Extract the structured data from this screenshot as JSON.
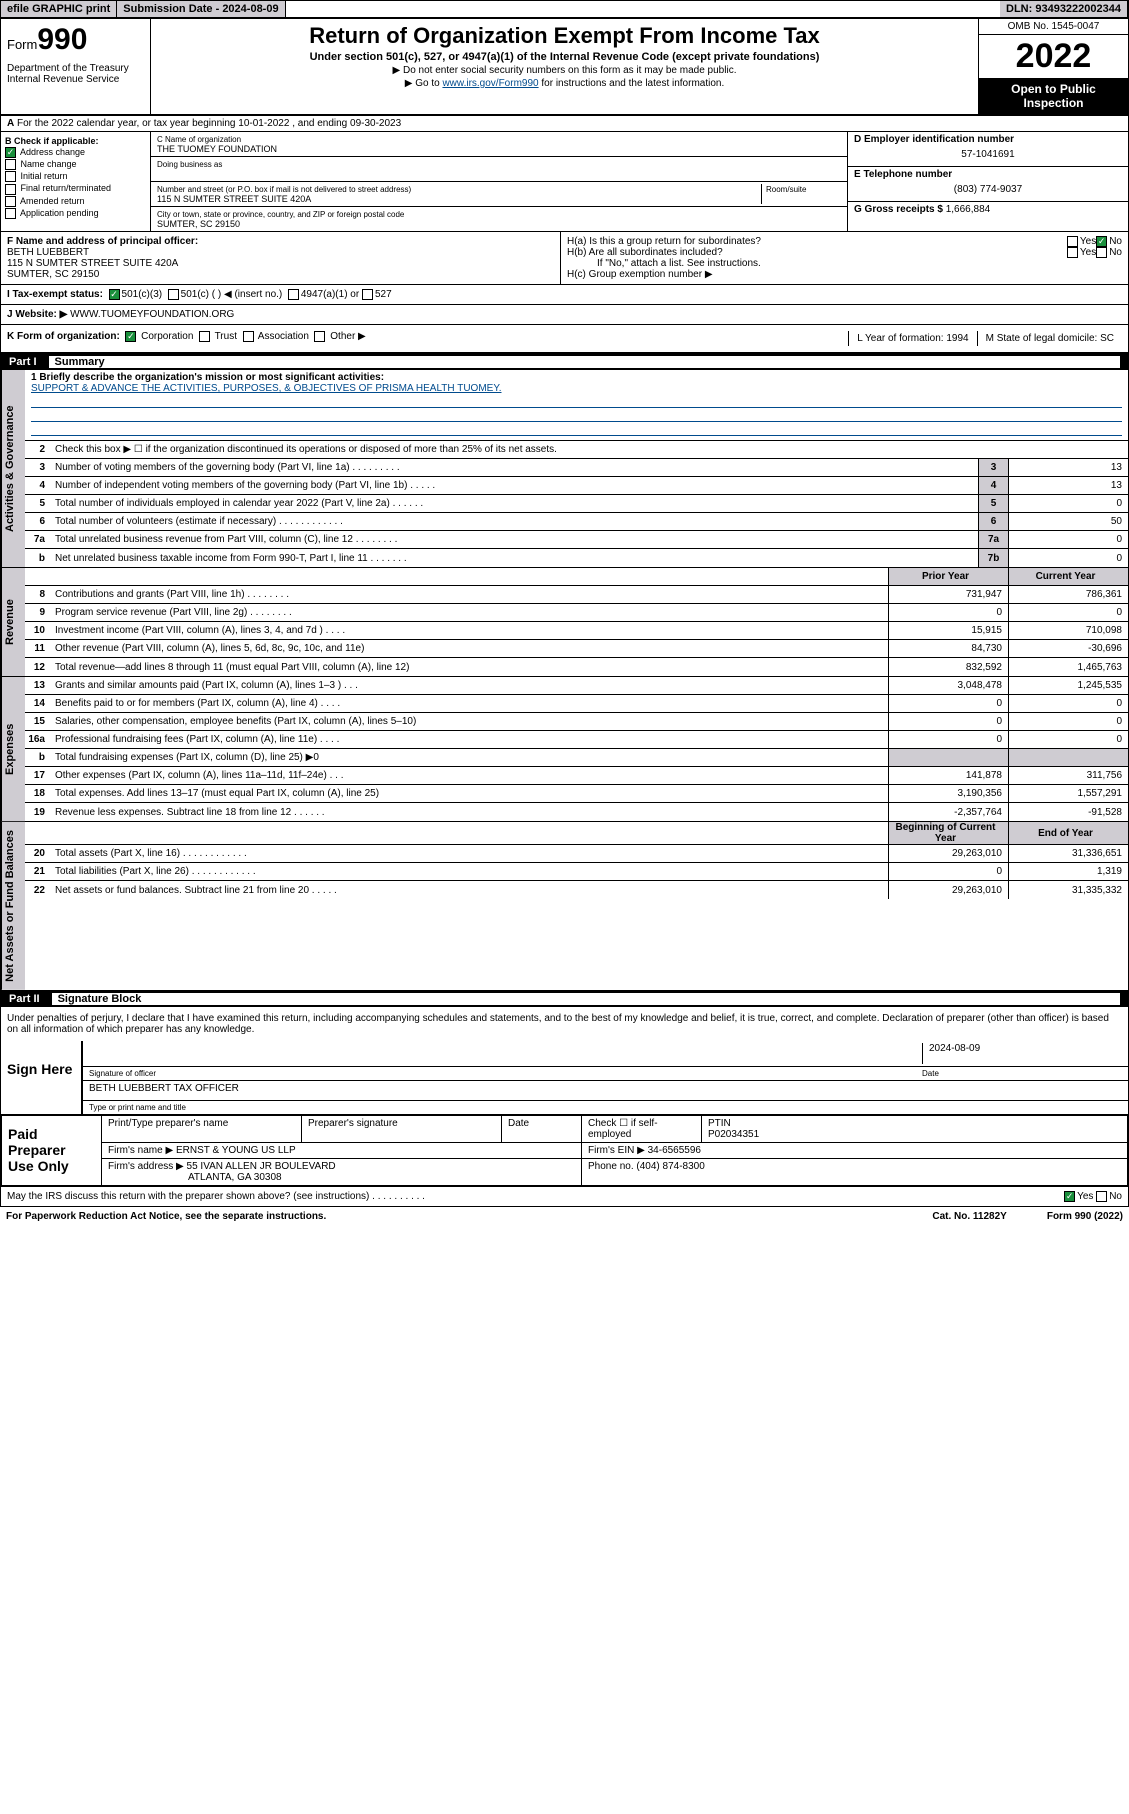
{
  "header": {
    "efile": "efile GRAPHIC print",
    "submission": "Submission Date - 2024-08-09",
    "dln": "DLN: 93493222002344"
  },
  "title": {
    "form_label": "Form",
    "form_num": "990",
    "dept": "Department of the Treasury Internal Revenue Service",
    "main": "Return of Organization Exempt From Income Tax",
    "sub": "Under section 501(c), 527, or 4947(a)(1) of the Internal Revenue Code (except private foundations)",
    "note1": "▶ Do not enter social security numbers on this form as it may be made public.",
    "note2_prefix": "▶ Go to ",
    "note2_link": "www.irs.gov/Form990",
    "note2_suffix": " for instructions and the latest information.",
    "omb": "OMB No. 1545-0047",
    "year": "2022",
    "inspection": "Open to Public Inspection"
  },
  "row_a": "For the 2022 calendar year, or tax year beginning 10-01-2022   , and ending 09-30-2023",
  "box_b": {
    "label": "B Check if applicable:",
    "items": [
      "Address change",
      "Name change",
      "Initial return",
      "Final return/terminated",
      "Amended return",
      "Application pending"
    ],
    "checked": [
      true,
      false,
      false,
      false,
      false,
      false
    ]
  },
  "box_c": {
    "name_lbl": "C Name of organization",
    "name": "THE TUOMEY FOUNDATION",
    "dba_lbl": "Doing business as",
    "dba": "",
    "addr_lbl": "Number and street (or P.O. box if mail is not delivered to street address)",
    "addr": "115 N SUMTER STREET SUITE 420A",
    "room_lbl": "Room/suite",
    "city_lbl": "City or town, state or province, country, and ZIP or foreign postal code",
    "city": "SUMTER, SC  29150"
  },
  "box_d": {
    "lbl": "D Employer identification number",
    "val": "57-1041691"
  },
  "box_e": {
    "lbl": "E Telephone number",
    "val": "(803) 774-9037"
  },
  "box_g": {
    "lbl": "G Gross receipts $",
    "val": "1,666,884"
  },
  "box_f": {
    "lbl": "F  Name and address of principal officer:",
    "name": "BETH LUEBBERT",
    "addr1": "115 N SUMTER STREET SUITE 420A",
    "addr2": "SUMTER, SC  29150"
  },
  "box_h": {
    "a": "H(a)  Is this a group return for subordinates?",
    "b": "H(b)  Are all subordinates included?",
    "b_note": "If \"No,\" attach a list. See instructions.",
    "c": "H(c)  Group exemption number ▶"
  },
  "row_i": {
    "lbl": "I    Tax-exempt status:",
    "opts": [
      "501(c)(3)",
      "501(c) (  ) ◀ (insert no.)",
      "4947(a)(1) or",
      "527"
    ]
  },
  "row_j": {
    "lbl": "J   Website: ▶",
    "val": "WWW.TUOMEYFOUNDATION.ORG"
  },
  "row_k": {
    "lbl": "K Form of organization:",
    "opts": [
      "Corporation",
      "Trust",
      "Association",
      "Other ▶"
    ],
    "l": "L Year of formation: 1994",
    "m": "M State of legal domicile: SC"
  },
  "parts": {
    "p1": "Part I",
    "p1t": "Summary",
    "p2": "Part II",
    "p2t": "Signature Block"
  },
  "mission": {
    "lbl": "1   Briefly describe the organization's mission or most significant activities:",
    "txt": "SUPPORT & ADVANCE THE ACTIVITIES, PURPOSES, & OBJECTIVES OF PRISMA HEALTH TUOMEY."
  },
  "vtabs": {
    "gov": "Activities & Governance",
    "rev": "Revenue",
    "exp": "Expenses",
    "net": "Net Assets or Fund Balances"
  },
  "gov_lines": [
    {
      "n": "2",
      "t": "Check this box ▶ ☐  if the organization discontinued its operations or disposed of more than 25% of its net assets.",
      "box": "",
      "v": ""
    },
    {
      "n": "3",
      "t": "Number of voting members of the governing body (Part VI, line 1a)   .    .    .    .    .    .    .    .    .",
      "box": "3",
      "v": "13"
    },
    {
      "n": "4",
      "t": "Number of independent voting members of the governing body (Part VI, line 1b)   .    .    .    .    .",
      "box": "4",
      "v": "13"
    },
    {
      "n": "5",
      "t": "Total number of individuals employed in calendar year 2022 (Part V, line 2a)   .    .    .    .    .    .",
      "box": "5",
      "v": "0"
    },
    {
      "n": "6",
      "t": "Total number of volunteers (estimate if necessary)   .    .    .    .    .    .    .    .    .    .    .    .",
      "box": "6",
      "v": "50"
    },
    {
      "n": "7a",
      "t": "Total unrelated business revenue from Part VIII, column (C), line 12   .    .    .    .    .    .    .    .",
      "box": "7a",
      "v": "0"
    },
    {
      "n": "b",
      "t": "Net unrelated business taxable income from Form 990-T, Part I, line 11   .    .    .    .    .    .    .",
      "box": "7b",
      "v": "0"
    }
  ],
  "col_hdrs": {
    "prior": "Prior Year",
    "current": "Current Year",
    "beg": "Beginning of Current Year",
    "end": "End of Year"
  },
  "rev_lines": [
    {
      "n": "8",
      "t": "Contributions and grants (Part VIII, line 1h)   .    .    .    .    .    .    .    .",
      "p": "731,947",
      "c": "786,361"
    },
    {
      "n": "9",
      "t": "Program service revenue (Part VIII, line 2g)   .    .    .    .    .    .    .    .",
      "p": "0",
      "c": "0"
    },
    {
      "n": "10",
      "t": "Investment income (Part VIII, column (A), lines 3, 4, and 7d )   .    .    .    .",
      "p": "15,915",
      "c": "710,098"
    },
    {
      "n": "11",
      "t": "Other revenue (Part VIII, column (A), lines 5, 6d, 8c, 9c, 10c, and 11e)",
      "p": "84,730",
      "c": "-30,696"
    },
    {
      "n": "12",
      "t": "Total revenue—add lines 8 through 11 (must equal Part VIII, column (A), line 12)",
      "p": "832,592",
      "c": "1,465,763"
    }
  ],
  "exp_lines": [
    {
      "n": "13",
      "t": "Grants and similar amounts paid (Part IX, column (A), lines 1–3 )   .    .    .",
      "p": "3,048,478",
      "c": "1,245,535"
    },
    {
      "n": "14",
      "t": "Benefits paid to or for members (Part IX, column (A), line 4)   .    .    .    .",
      "p": "0",
      "c": "0"
    },
    {
      "n": "15",
      "t": "Salaries, other compensation, employee benefits (Part IX, column (A), lines 5–10)",
      "p": "0",
      "c": "0"
    },
    {
      "n": "16a",
      "t": "Professional fundraising fees (Part IX, column (A), line 11e)   .    .    .    .",
      "p": "0",
      "c": "0"
    },
    {
      "n": "b",
      "t": "Total fundraising expenses (Part IX, column (D), line 25) ▶0",
      "p": "",
      "c": ""
    },
    {
      "n": "17",
      "t": "Other expenses (Part IX, column (A), lines 11a–11d, 11f–24e)   .    .    .",
      "p": "141,878",
      "c": "311,756"
    },
    {
      "n": "18",
      "t": "Total expenses. Add lines 13–17 (must equal Part IX, column (A), line 25)",
      "p": "3,190,356",
      "c": "1,557,291"
    },
    {
      "n": "19",
      "t": "Revenue less expenses. Subtract line 18 from line 12   .    .    .    .    .    .",
      "p": "-2,357,764",
      "c": "-91,528"
    }
  ],
  "net_lines": [
    {
      "n": "20",
      "t": "Total assets (Part X, line 16)   .    .    .    .    .    .    .    .    .    .    .    .",
      "p": "29,263,010",
      "c": "31,336,651"
    },
    {
      "n": "21",
      "t": "Total liabilities (Part X, line 26)   .    .    .    .    .    .    .    .    .    .    .    .",
      "p": "0",
      "c": "1,319"
    },
    {
      "n": "22",
      "t": "Net assets or fund balances. Subtract line 21 from line 20   .    .    .    .    .",
      "p": "29,263,010",
      "c": "31,335,332"
    }
  ],
  "sig": {
    "declare": "Under penalties of perjury, I declare that I have examined this return, including accompanying schedules and statements, and to the best of my knowledge and belief, it is true, correct, and complete. Declaration of preparer (other than officer) is based on all information of which preparer has any knowledge.",
    "sign_here": "Sign Here",
    "sig_officer": "Signature of officer",
    "date_lbl": "Date",
    "date": "2024-08-09",
    "officer": "BETH LUEBBERT  TAX OFFICER",
    "officer_lbl": "Type or print name and title",
    "paid": "Paid Preparer Use Only",
    "prep_name_lbl": "Print/Type preparer's name",
    "prep_sig_lbl": "Preparer's signature",
    "check_self": "Check ☐ if self-employed",
    "ptin_lbl": "PTIN",
    "ptin": "P02034351",
    "firm_name_lbl": "Firm's name      ▶",
    "firm_name": "ERNST & YOUNG US LLP",
    "firm_ein_lbl": "Firm's EIN ▶",
    "firm_ein": "34-6565596",
    "firm_addr_lbl": "Firm's address ▶",
    "firm_addr1": "55 IVAN ALLEN JR BOULEVARD",
    "firm_addr2": "ATLANTA, GA  30308",
    "phone_lbl": "Phone no.",
    "phone": "(404) 874-8300",
    "discuss": "May the IRS discuss this return with the preparer shown above? (see instructions)   .    .    .    .    .    .    .    .    .    ."
  },
  "footer": {
    "pra": "For Paperwork Reduction Act Notice, see the separate instructions.",
    "cat": "Cat. No. 11282Y",
    "form": "Form 990 (2022)"
  }
}
